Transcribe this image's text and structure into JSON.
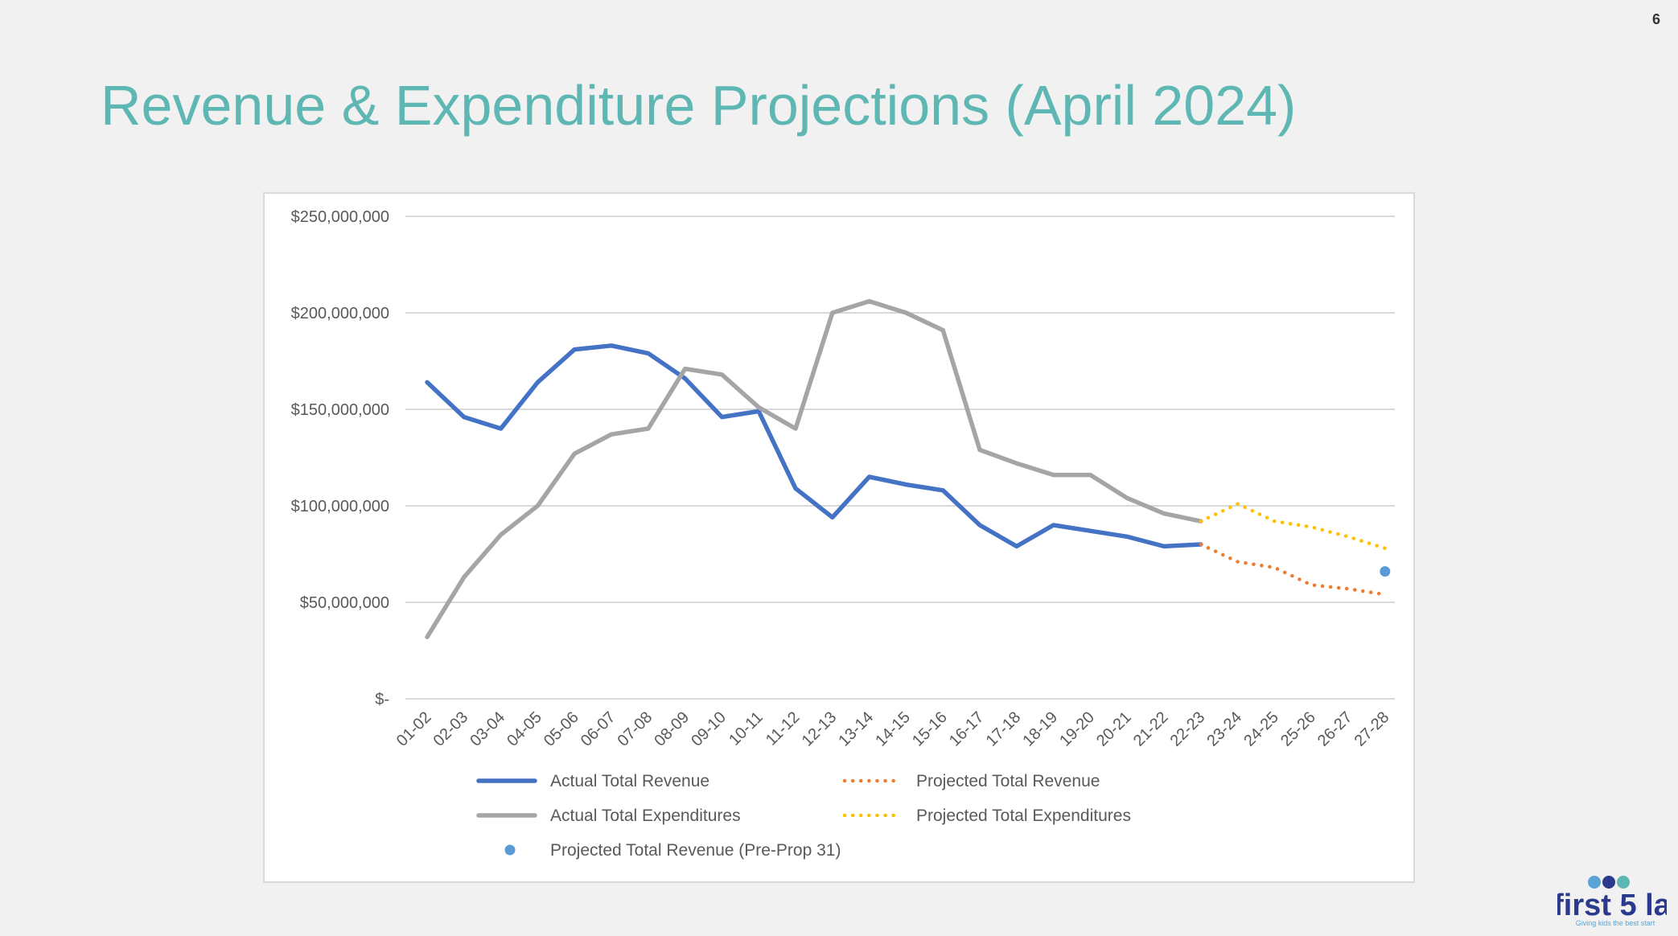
{
  "page_number": "6",
  "title": "Revenue & Expenditure Projections (April 2024)",
  "colors": {
    "title": "#5eb7b3",
    "actual_revenue": "#4472c4",
    "actual_expenditures": "#a5a5a5",
    "projected_revenue": "#ed7d31",
    "projected_expenditures": "#ffc000",
    "pre_prop31": "#5b9bd5",
    "gridline": "#d9d9d9",
    "logo_text": "#2b3a8c"
  },
  "logo": {
    "text": "first 5 la",
    "tagline": "Giving kids the best start",
    "icons": [
      "circle-1st-icon",
      "hand-icon",
      "circle-la-icon"
    ]
  },
  "chart_data": {
    "type": "line",
    "title": "",
    "xlabel": "",
    "ylabel": "",
    "ylim": [
      0,
      250000000
    ],
    "yticks": [
      0,
      50000000,
      100000000,
      150000000,
      200000000,
      250000000
    ],
    "ytick_labels": [
      "$-",
      "$50,000,000",
      "$100,000,000",
      "$150,000,000",
      "$200,000,000",
      "$250,000,000"
    ],
    "grid": true,
    "legend_position": "bottom",
    "categories": [
      "01-02",
      "02-03",
      "03-04",
      "04-05",
      "05-06",
      "06-07",
      "07-08",
      "08-09",
      "09-10",
      "10-11",
      "11-12",
      "12-13",
      "13-14",
      "14-15",
      "15-16",
      "16-17",
      "17-18",
      "18-19",
      "19-20",
      "20-21",
      "21-22",
      "22-23",
      "23-24",
      "24-25",
      "25-26",
      "26-27",
      "27-28"
    ],
    "series": [
      {
        "name": "Actual Total Revenue",
        "style": "solid",
        "color_key": "actual_revenue",
        "values": [
          164000000,
          146000000,
          140000000,
          164000000,
          181000000,
          183000000,
          179000000,
          166000000,
          146000000,
          149000000,
          109000000,
          94000000,
          115000000,
          111000000,
          108000000,
          90000000,
          79000000,
          90000000,
          87000000,
          84000000,
          79000000,
          80000000,
          null,
          null,
          null,
          null,
          null
        ]
      },
      {
        "name": "Actual Total Expenditures",
        "style": "solid",
        "color_key": "actual_expenditures",
        "values": [
          32000000,
          63000000,
          85000000,
          100000000,
          127000000,
          137000000,
          140000000,
          171000000,
          168000000,
          151000000,
          140000000,
          200000000,
          206000000,
          200000000,
          191000000,
          129000000,
          122000000,
          116000000,
          116000000,
          104000000,
          96000000,
          92000000,
          null,
          null,
          null,
          null,
          null
        ]
      },
      {
        "name": "Projected Total Revenue",
        "style": "dotted",
        "color_key": "projected_revenue",
        "values": [
          null,
          null,
          null,
          null,
          null,
          null,
          null,
          null,
          null,
          null,
          null,
          null,
          null,
          null,
          null,
          null,
          null,
          null,
          null,
          null,
          null,
          80000000,
          71000000,
          68000000,
          59000000,
          57000000,
          54000000
        ]
      },
      {
        "name": "Projected Total Expenditures",
        "style": "dotted",
        "color_key": "projected_expenditures",
        "values": [
          null,
          null,
          null,
          null,
          null,
          null,
          null,
          null,
          null,
          null,
          null,
          null,
          null,
          null,
          null,
          null,
          null,
          null,
          null,
          null,
          null,
          92000000,
          101000000,
          92000000,
          89000000,
          84000000,
          78000000
        ]
      },
      {
        "name": "Projected Total Revenue (Pre-Prop 31)",
        "style": "marker",
        "color_key": "pre_prop31",
        "values": [
          null,
          null,
          null,
          null,
          null,
          null,
          null,
          null,
          null,
          null,
          null,
          null,
          null,
          null,
          null,
          null,
          null,
          null,
          null,
          null,
          null,
          null,
          null,
          null,
          null,
          null,
          66000000
        ]
      }
    ]
  }
}
